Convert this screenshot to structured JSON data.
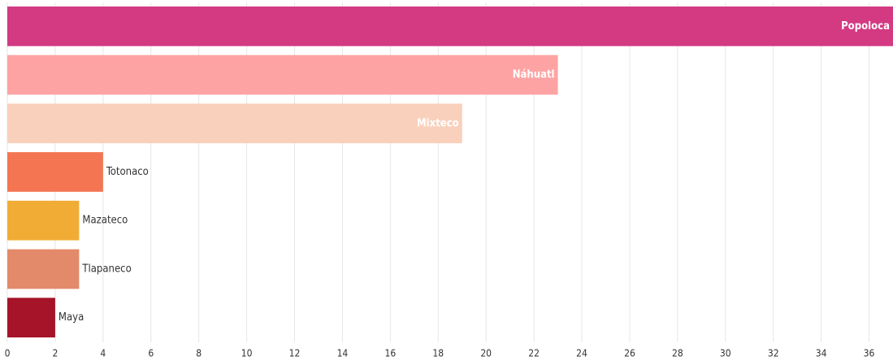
{
  "chart_data": {
    "type": "bar",
    "orientation": "horizontal",
    "categories": [
      "Popoloca",
      "Náhuatl",
      "Mixteco",
      "Totonaco",
      "Mazateco",
      "Tlapaneco",
      "Maya"
    ],
    "values": [
      37,
      23,
      19,
      4,
      3,
      3,
      2
    ],
    "colors": [
      "#d33a82",
      "#fea3a3",
      "#f9d0bb",
      "#f47552",
      "#f1ac36",
      "#e38a6b",
      "#a51428"
    ],
    "xlim": [
      0,
      37
    ],
    "xticks": [
      0,
      2,
      4,
      6,
      8,
      10,
      12,
      14,
      16,
      18,
      20,
      22,
      24,
      26,
      28,
      30,
      32,
      34,
      36
    ],
    "grid": true
  }
}
